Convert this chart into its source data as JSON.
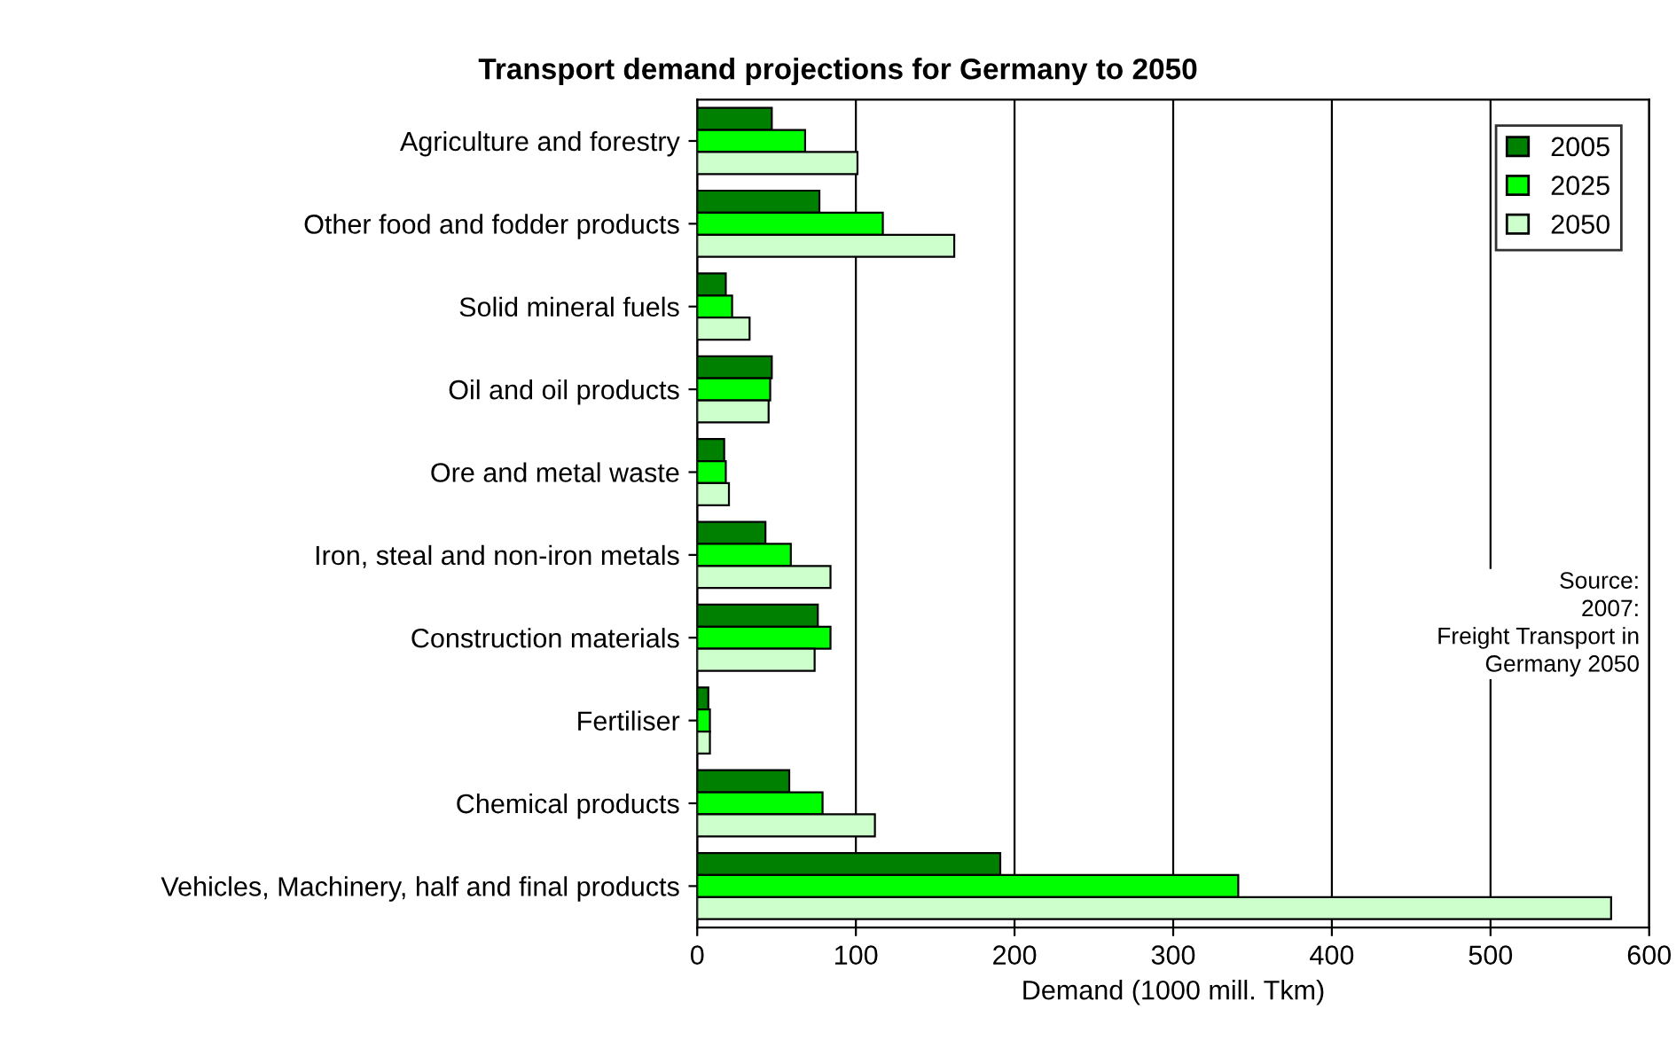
{
  "chart_data": {
    "type": "bar",
    "orientation": "horizontal",
    "title": "Transport demand projections for Germany to 2050",
    "xlabel": "Demand (1000 mill. Tkm)",
    "categories": [
      "Agriculture and forestry",
      "Other food and fodder products",
      "Solid mineral fuels",
      "Oil and oil products",
      "Ore and metal waste",
      "Iron, steal and non-iron metals",
      "Construction materials",
      "Fertiliser",
      "Chemical products",
      "Vehicles, Machinery, half and final products"
    ],
    "series": [
      {
        "name": "2005",
        "color": "#008000",
        "values": [
          47,
          77,
          18,
          47,
          17,
          43,
          76,
          7,
          58,
          191
        ]
      },
      {
        "name": "2025",
        "color": "#00ff00",
        "values": [
          68,
          117,
          22,
          46,
          18,
          59,
          84,
          8,
          79,
          341
        ]
      },
      {
        "name": "2050",
        "color": "#ccffcc",
        "values": [
          101,
          162,
          33,
          45,
          20,
          84,
          74,
          8,
          112,
          576
        ]
      }
    ],
    "xlim": [
      0,
      600
    ],
    "xticks": [
      0,
      100,
      200,
      300,
      400,
      500,
      600
    ],
    "grid": "x",
    "legend": "top right",
    "annotations": [
      "Source:\n2007:\nFreight Transport in\nGermany 2050"
    ]
  }
}
